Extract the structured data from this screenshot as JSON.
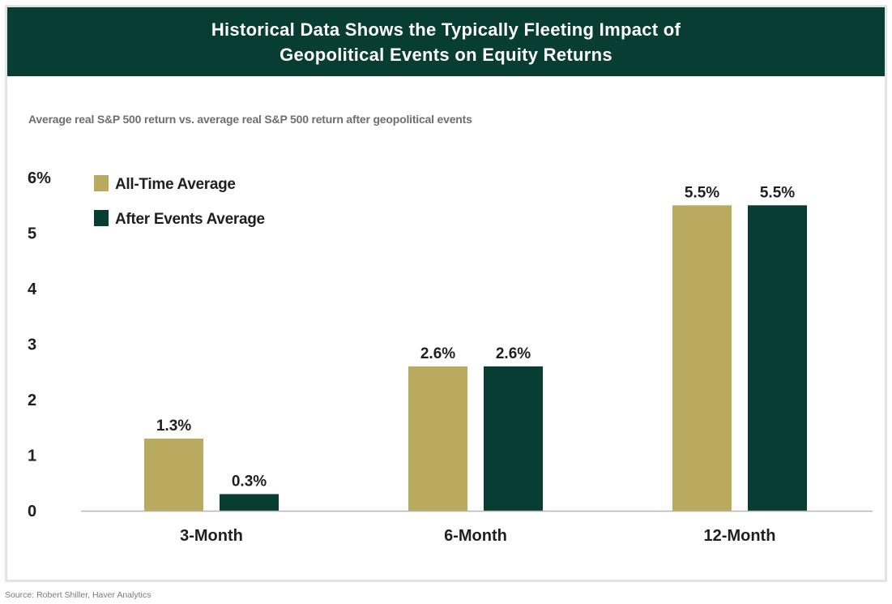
{
  "chart_data": {
    "type": "bar",
    "title": "Historical Data Shows the Typically Fleeting Impact of\nGeopolitical Events on Equity Returns",
    "subtitle": "Average real S&P 500 return vs. average real S&P 500 return after geopolitical events",
    "categories": [
      "3-Month",
      "6-Month",
      "12-Month"
    ],
    "series": [
      {
        "name": "All-Time Average",
        "color": "#b8ab60",
        "values": [
          1.3,
          2.6,
          5.5
        ],
        "labels": [
          "1.3%",
          "2.6%",
          "5.5%"
        ]
      },
      {
        "name": "After Events Average",
        "color": "#083d33",
        "values": [
          0.3,
          2.6,
          5.5
        ],
        "labels": [
          "0.3%",
          "2.6%",
          "5.5%"
        ]
      }
    ],
    "yticks": [
      {
        "value": 0,
        "label": "0"
      },
      {
        "value": 1,
        "label": "1"
      },
      {
        "value": 2,
        "label": "2"
      },
      {
        "value": 3,
        "label": "3"
      },
      {
        "value": 4,
        "label": "4"
      },
      {
        "value": 5,
        "label": "5"
      },
      {
        "value": 6,
        "label": "6%"
      }
    ],
    "ylim": [
      0,
      6
    ],
    "xlabel": "",
    "ylabel": "",
    "grid": false,
    "legend_position": "top-left"
  },
  "source": "Source: Robert Shiller, Haver Analytics",
  "colors": {
    "header_bg": "#083d33",
    "header_text": "#ffffff",
    "axis": "#b5b5b5"
  }
}
